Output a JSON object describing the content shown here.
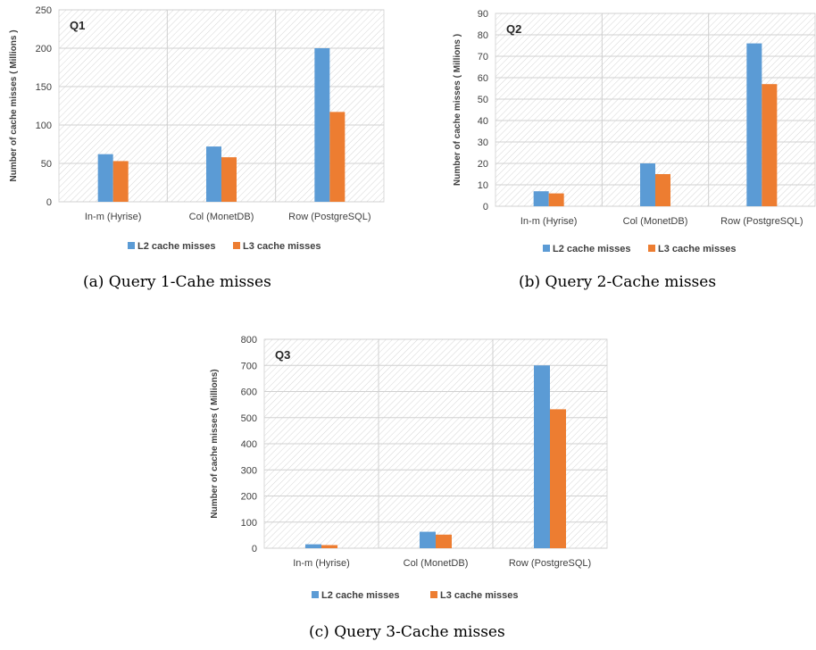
{
  "colors": {
    "l2": "#5b9bd5",
    "l3": "#ed7d31"
  },
  "chart_data": [
    {
      "type": "bar",
      "title": "Q1",
      "ylabel": "Number of cache misses ( Millions )",
      "xlabel": "",
      "ylim": [
        0,
        250
      ],
      "yticks": [
        0,
        50,
        100,
        150,
        200,
        250
      ],
      "categories": [
        "In-m (Hyrise)",
        "Col (MonetDB)",
        "Row (PostgreSQL)"
      ],
      "series": [
        {
          "name": "L2 cache misses",
          "values": [
            62,
            72,
            200
          ]
        },
        {
          "name": "L3 cache misses",
          "values": [
            53,
            58,
            117
          ]
        }
      ],
      "grid": true,
      "legend": "bottom",
      "caption": "(a) Query 1-Cahe misses"
    },
    {
      "type": "bar",
      "title": "Q2",
      "ylabel": "Number of cache misses  ( Millions )",
      "xlabel": "",
      "ylim": [
        0,
        90
      ],
      "yticks": [
        0,
        10,
        20,
        30,
        40,
        50,
        60,
        70,
        80,
        90
      ],
      "categories": [
        "In-m (Hyrise)",
        "Col (MonetDB)",
        "Row (PostgreSQL)"
      ],
      "series": [
        {
          "name": "L2 cache misses",
          "values": [
            7,
            20,
            76
          ]
        },
        {
          "name": "L3 cache misses",
          "values": [
            6,
            15,
            57
          ]
        }
      ],
      "grid": true,
      "legend": "bottom",
      "caption": "(b) Query 2-Cache misses"
    },
    {
      "type": "bar",
      "title": "Q3",
      "ylabel": "Number of cache misses ( Millions)",
      "xlabel": "",
      "ylim": [
        0,
        800
      ],
      "yticks": [
        0,
        100,
        200,
        300,
        400,
        500,
        600,
        700,
        800
      ],
      "categories": [
        "In-m (Hyrise)",
        "Col (MonetDB)",
        "Row (PostgreSQL)"
      ],
      "series": [
        {
          "name": "L2 cache misses",
          "values": [
            15,
            63,
            700
          ]
        },
        {
          "name": "L3 cache misses",
          "values": [
            12,
            52,
            532
          ]
        }
      ],
      "grid": true,
      "legend": "bottom",
      "caption": "(c) Query 3-Cache misses"
    }
  ]
}
